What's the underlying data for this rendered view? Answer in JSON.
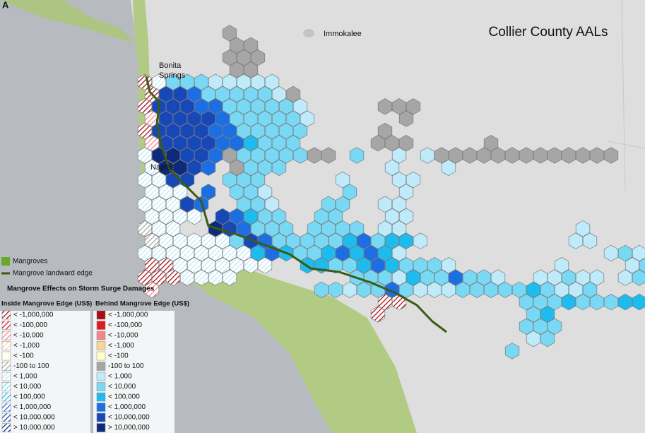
{
  "panel_label": "A",
  "title": "Collier County AALs",
  "places": {
    "immokalee": "Immokalee",
    "bonita_springs": [
      "Bonita",
      "Springs"
    ],
    "naples": "Naples"
  },
  "legend": {
    "mangroves": "Mangroves",
    "edge": "Mangrove landward edge",
    "heading": "Mangrove Effects on Storm Surge Damages",
    "class_colors": [
      "#a50f15",
      "#e31a1c",
      "#f4868a",
      "#fcd49a",
      "#ffffc8",
      "#a6a6a6",
      "#bfeafa",
      "#79d9f4",
      "#1ebcee",
      "#1c6fe3",
      "#1648b8",
      "#0d2a7c"
    ],
    "inside": {
      "title": "Inside Mangrove Edge (US$)",
      "items": [
        "< -1,000,000",
        "< -100,000",
        "< -10,000",
        "< -1,000",
        "< -100",
        "-100 to 100",
        "< 1,000",
        "< 10,000",
        "< 100,000",
        "< 1,000,000",
        "< 10,000,000",
        "> 10,000,000"
      ]
    },
    "behind": {
      "title": "Behind Mangrove Edge (US$)",
      "items": [
        "< -1,000,000",
        "< -100,000",
        "< -10,000",
        "< -1,000",
        "< -100",
        "-100 to 100",
        "< 1,000",
        "< 10,000",
        "< 100,000",
        "< 1,000,000",
        "< 10,000,000",
        "> 10,000,000"
      ]
    }
  }
}
